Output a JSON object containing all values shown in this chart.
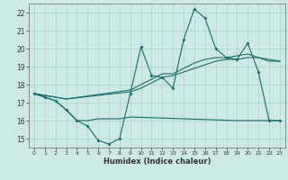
{
  "xlabel": "Humidex (Indice chaleur)",
  "xlim": [
    -0.5,
    23.5
  ],
  "ylim": [
    14.5,
    22.5
  ],
  "yticks": [
    15,
    16,
    17,
    18,
    19,
    20,
    21,
    22
  ],
  "xticks": [
    0,
    1,
    2,
    3,
    4,
    5,
    6,
    7,
    8,
    9,
    10,
    11,
    12,
    13,
    14,
    15,
    16,
    17,
    18,
    19,
    20,
    21,
    22,
    23
  ],
  "background_color": "#cce9e5",
  "grid_color": "#aad4cf",
  "line_color": "#1a6b6b",
  "line1_x": [
    0,
    1,
    2,
    3,
    4,
    5,
    6,
    7,
    8,
    9,
    10,
    11,
    12,
    13,
    14,
    15,
    16,
    17,
    18,
    19,
    20,
    21,
    22,
    23
  ],
  "line1_y": [
    17.5,
    17.3,
    17.1,
    16.6,
    16.0,
    15.7,
    14.9,
    14.7,
    15.0,
    17.5,
    20.1,
    18.5,
    18.4,
    17.8,
    20.5,
    22.2,
    21.7,
    20.0,
    19.5,
    19.4,
    20.3,
    18.7,
    16.0,
    16.0
  ],
  "line2_x": [
    0,
    2,
    3,
    4,
    5,
    6,
    7,
    8,
    9,
    19,
    20,
    21,
    22,
    23
  ],
  "line2_y": [
    17.5,
    17.1,
    16.6,
    16.0,
    16.0,
    16.1,
    16.1,
    16.1,
    16.2,
    16.0,
    16.0,
    16.0,
    16.0,
    16.0
  ],
  "line3_x": [
    0,
    1,
    2,
    3,
    9,
    10,
    11,
    12,
    13,
    14,
    15,
    16,
    17,
    18,
    19,
    20,
    21,
    22,
    23
  ],
  "line3_y": [
    17.5,
    17.4,
    17.3,
    17.2,
    17.6,
    17.8,
    18.1,
    18.4,
    18.5,
    18.7,
    18.9,
    19.1,
    19.3,
    19.4,
    19.4,
    19.5,
    19.5,
    19.3,
    19.3
  ],
  "line4_x": [
    0,
    1,
    2,
    3,
    9,
    10,
    11,
    12,
    13,
    14,
    15,
    16,
    17,
    18,
    19,
    20,
    21,
    22,
    23
  ],
  "line4_y": [
    17.5,
    17.4,
    17.3,
    17.2,
    17.7,
    18.0,
    18.3,
    18.6,
    18.6,
    18.9,
    19.2,
    19.4,
    19.5,
    19.5,
    19.6,
    19.7,
    19.5,
    19.4,
    19.3
  ]
}
